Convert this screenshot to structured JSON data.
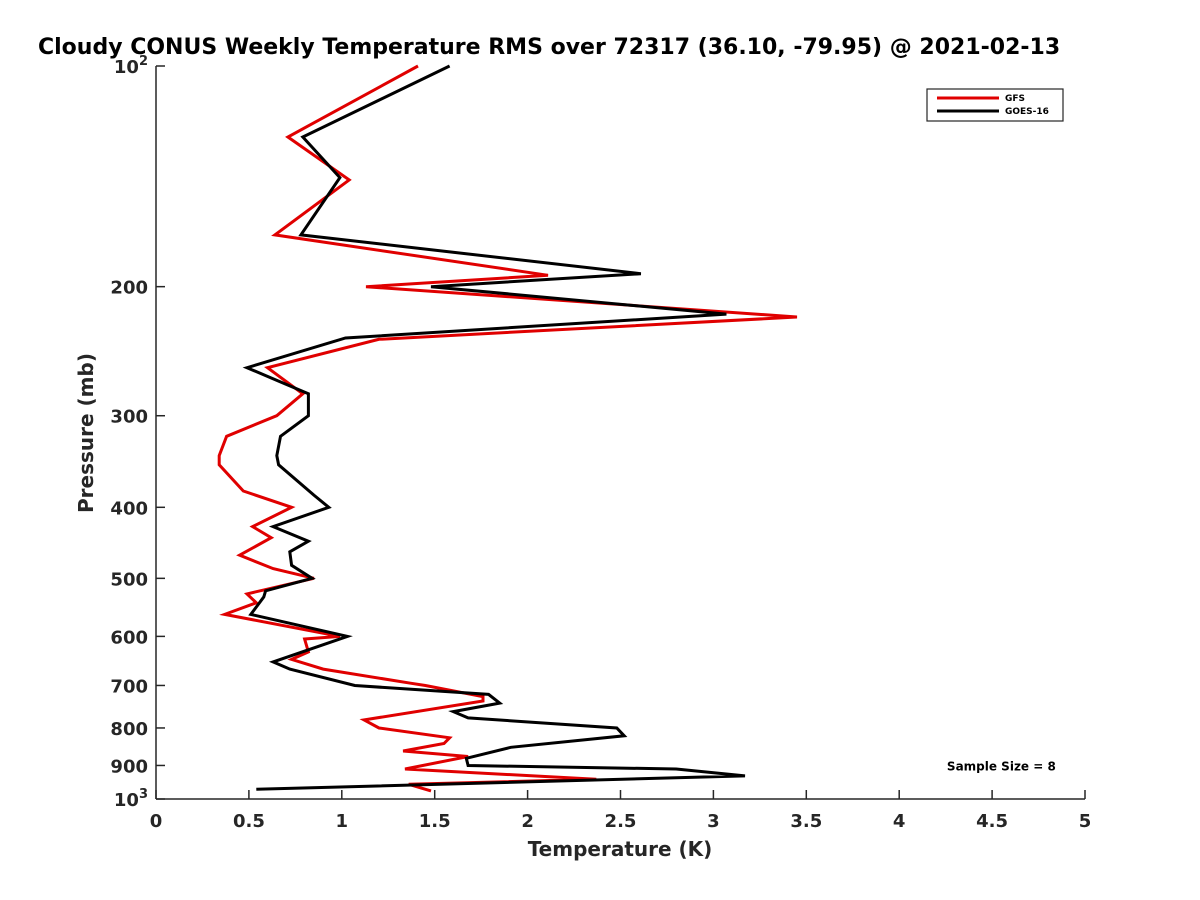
{
  "chart_data": {
    "type": "line",
    "title": "Cloudy CONUS Weekly Temperature RMS over 72317 (36.10, -79.95) @ 2021-02-13",
    "xlabel": "Temperature (K)",
    "ylabel": "Pressure (mb)",
    "xlim": [
      0,
      5
    ],
    "ylim": [
      100,
      1000
    ],
    "y_scale": "log",
    "y_reversed": true,
    "grid": false,
    "legend_position": "top-right",
    "x_ticks": [
      {
        "value": 0,
        "label": "0"
      },
      {
        "value": 0.5,
        "label": "0.5"
      },
      {
        "value": 1,
        "label": "1"
      },
      {
        "value": 1.5,
        "label": "1.5"
      },
      {
        "value": 2,
        "label": "2"
      },
      {
        "value": 2.5,
        "label": "2.5"
      },
      {
        "value": 3,
        "label": "3"
      },
      {
        "value": 3.5,
        "label": "3.5"
      },
      {
        "value": 4,
        "label": "4"
      },
      {
        "value": 4.5,
        "label": "4.5"
      },
      {
        "value": 5,
        "label": "5"
      }
    ],
    "y_ticks": [
      {
        "value": 100,
        "base": "10",
        "exp": "2"
      },
      {
        "value": 200,
        "base": "200",
        "exp": ""
      },
      {
        "value": 300,
        "base": "300",
        "exp": ""
      },
      {
        "value": 400,
        "base": "400",
        "exp": ""
      },
      {
        "value": 500,
        "base": "500",
        "exp": ""
      },
      {
        "value": 600,
        "base": "600",
        "exp": ""
      },
      {
        "value": 700,
        "base": "700",
        "exp": ""
      },
      {
        "value": 800,
        "base": "800",
        "exp": ""
      },
      {
        "value": 900,
        "base": "900",
        "exp": ""
      },
      {
        "value": 1000,
        "base": "10",
        "exp": "3"
      }
    ],
    "series": [
      {
        "name": "GFS",
        "color": "#e00000",
        "points": [
          [
            1.41,
            100
          ],
          [
            0.71,
            125
          ],
          [
            1.04,
            143
          ],
          [
            0.64,
            170
          ],
          [
            2.11,
            193
          ],
          [
            1.13,
            200
          ],
          [
            3.45,
            220
          ],
          [
            1.2,
            236
          ],
          [
            0.6,
            258
          ],
          [
            0.79,
            280
          ],
          [
            0.65,
            300
          ],
          [
            0.38,
            320
          ],
          [
            0.34,
            340
          ],
          [
            0.34,
            350
          ],
          [
            0.47,
            380
          ],
          [
            0.73,
            400
          ],
          [
            0.52,
            425
          ],
          [
            0.62,
            440
          ],
          [
            0.45,
            465
          ],
          [
            0.63,
            485
          ],
          [
            0.85,
            500
          ],
          [
            0.49,
            525
          ],
          [
            0.54,
            540
          ],
          [
            0.37,
            560
          ],
          [
            0.99,
            600
          ],
          [
            0.8,
            605
          ],
          [
            0.82,
            630
          ],
          [
            0.73,
            645
          ],
          [
            0.9,
            665
          ],
          [
            1.37,
            695
          ],
          [
            1.45,
            700
          ],
          [
            1.76,
            725
          ],
          [
            1.76,
            735
          ],
          [
            1.12,
            780
          ],
          [
            1.2,
            800
          ],
          [
            1.58,
            825
          ],
          [
            1.55,
            840
          ],
          [
            1.33,
            860
          ],
          [
            1.68,
            875
          ],
          [
            1.34,
            910
          ],
          [
            2.37,
            940
          ],
          [
            1.36,
            955
          ],
          [
            1.48,
            975
          ]
        ]
      },
      {
        "name": "GOES-16",
        "color": "#000000",
        "points": [
          [
            1.58,
            100
          ],
          [
            0.79,
            125
          ],
          [
            0.99,
            142
          ],
          [
            0.78,
            170
          ],
          [
            2.61,
            192
          ],
          [
            1.48,
            200
          ],
          [
            3.07,
            218
          ],
          [
            1.02,
            235
          ],
          [
            0.49,
            258
          ],
          [
            0.82,
            280
          ],
          [
            0.82,
            300
          ],
          [
            0.67,
            320
          ],
          [
            0.65,
            340
          ],
          [
            0.66,
            350
          ],
          [
            0.85,
            385
          ],
          [
            0.93,
            400
          ],
          [
            0.63,
            425
          ],
          [
            0.82,
            445
          ],
          [
            0.72,
            460
          ],
          [
            0.73,
            480
          ],
          [
            0.84,
            500
          ],
          [
            0.59,
            520
          ],
          [
            0.58,
            530
          ],
          [
            0.51,
            560
          ],
          [
            1.03,
            600
          ],
          [
            0.63,
            650
          ],
          [
            0.72,
            665
          ],
          [
            1.07,
            700
          ],
          [
            1.79,
            720
          ],
          [
            1.85,
            740
          ],
          [
            1.6,
            760
          ],
          [
            1.68,
            775
          ],
          [
            2.48,
            800
          ],
          [
            2.52,
            820
          ],
          [
            1.91,
            850
          ],
          [
            1.67,
            880
          ],
          [
            1.68,
            900
          ],
          [
            2.8,
            910
          ],
          [
            3.17,
            930
          ],
          [
            0.54,
            970
          ]
        ]
      }
    ],
    "annotations": [
      {
        "text": "Sample Size = 8",
        "x": 4.55,
        "y": 900
      }
    ]
  }
}
